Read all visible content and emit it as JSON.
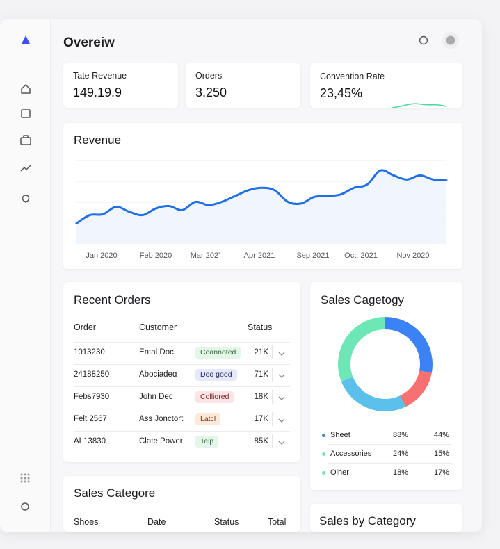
{
  "header": {
    "title": "Overeiw"
  },
  "kpis": [
    {
      "label": "Tate Revenue",
      "value": "149.19.9"
    },
    {
      "label": "Orders",
      "value": "3,250"
    },
    {
      "label": "Convention Rate",
      "value": "23,45%"
    }
  ],
  "revenue": {
    "title": "Revenue",
    "type": "line",
    "color": "#1f6fe5",
    "x_labels": [
      "Jan 2020",
      "Feb 2020",
      "Mar 202'",
      "Apr 2021",
      "Sep 2021",
      "Oct. 2021",
      "Nov 2020"
    ],
    "values": [
      24,
      34,
      35,
      44,
      38,
      34,
      42,
      45,
      40,
      50,
      46,
      50,
      57,
      64,
      67,
      64,
      50,
      48,
      56,
      57,
      59,
      67,
      71,
      88,
      82,
      77,
      82,
      77,
      76
    ],
    "ylim": [
      0,
      100
    ]
  },
  "recent_orders": {
    "title": "Recent Orders",
    "columns": [
      "Order",
      "Customer",
      "Status"
    ],
    "rows": [
      [
        "1013230",
        "Ental Doc",
        "Coannoted",
        "21K"
      ],
      [
        "24188250",
        "Abociadeɑ",
        "Doo good",
        "71K"
      ],
      [
        "Febs7930",
        "John Dec",
        "Colliored",
        "18K"
      ],
      [
        "Felt 2567",
        "Ass Jonctort",
        "Latcl",
        "17K"
      ],
      [
        "AL13830",
        "Clate Power",
        "Telp",
        "85K"
      ]
    ]
  },
  "sales_category": {
    "title": "Sales Cagetogy",
    "type": "donut",
    "segments": [
      {
        "color": "#3b82f6",
        "value": 28
      },
      {
        "color": "#f87171",
        "value": 15
      },
      {
        "color": "#5bc0eb",
        "value": 26
      },
      {
        "color": "#6ee7b7",
        "value": 31
      }
    ],
    "rows": [
      {
        "color": "#3b82f6",
        "cells": [
          "Sheet",
          "88%",
          "44%"
        ]
      },
      {
        "color": "#6ee7b7",
        "cells": [
          "Accessories",
          "24%",
          "15%"
        ]
      },
      {
        "color": "#6ee7b7",
        "cells": [
          "Olher",
          "18%",
          "17%"
        ]
      }
    ]
  },
  "sales_categore": {
    "title": "Sales Categore",
    "columns": [
      "Shoes",
      "Date",
      "Status",
      "Total"
    ]
  },
  "sales_by_category": {
    "title": "Sales by Category"
  }
}
